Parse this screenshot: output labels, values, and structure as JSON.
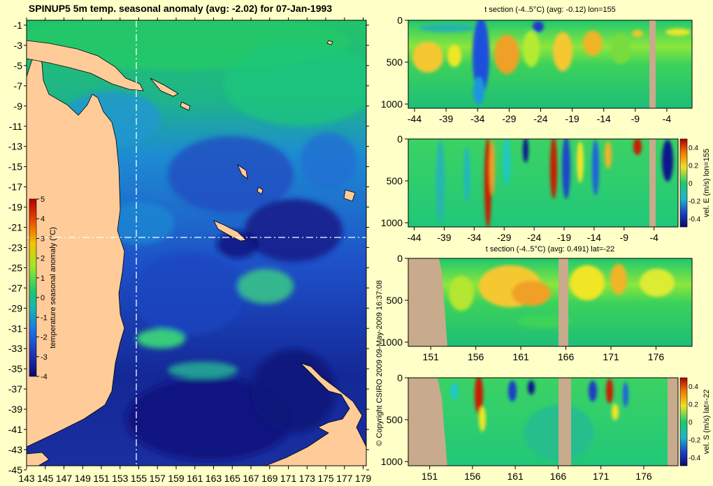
{
  "map": {
    "title": "SPINUP5 5m temp. seasonal anomaly (avg: -2.02) for 07-Jan-1993",
    "x_ticks": [
      "143",
      "145",
      "147",
      "149",
      "151",
      "153",
      "155",
      "157",
      "159",
      "161",
      "163",
      "165",
      "167",
      "169",
      "171",
      "173",
      "175",
      "177",
      "179"
    ],
    "y_ticks": [
      "-1",
      "-3",
      "-5",
      "-7",
      "-9",
      "-11",
      "-13",
      "-15",
      "-17",
      "-19",
      "-21",
      "-23",
      "-25",
      "-27",
      "-29",
      "-31",
      "-33",
      "-35",
      "-37",
      "-39",
      "-41",
      "-43",
      "-45"
    ],
    "colorbar": {
      "label": "temperature seasonal anomaly (°C)",
      "ticks": [
        "5",
        "4",
        "3",
        "2",
        "1",
        "0",
        "-1",
        "-2",
        "-3",
        "-4"
      ]
    },
    "section_lines": {
      "lon": 155,
      "lat": -22
    },
    "copyright": "© Copyright CSIRO 2009   09-May-2009 16:37:08"
  },
  "chart_data": [
    {
      "type": "heatmap",
      "title": "t section (-4..5°C) (avg: -0.12) lon=155",
      "xlabel": "",
      "ylabel": "",
      "x_ticks": [
        "-44",
        "-39",
        "-34",
        "-29",
        "-24",
        "-19",
        "-14",
        "-9",
        "-4"
      ],
      "y_ticks": [
        "0",
        "500",
        "1000"
      ],
      "xlim": [
        -45,
        0
      ],
      "ylim": [
        1050,
        0
      ],
      "colorbar": null
    },
    {
      "type": "heatmap",
      "title": "",
      "xlabel": "",
      "ylabel": "vel. E (m/s) lon=155",
      "x_ticks": [
        "-44",
        "-39",
        "-34",
        "-29",
        "-24",
        "-19",
        "-14",
        "-9",
        "-4"
      ],
      "y_ticks": [
        "0",
        "500",
        "1000"
      ],
      "xlim": [
        -45,
        0
      ],
      "ylim": [
        1050,
        0
      ],
      "colorbar": {
        "ticks": [
          "0.4",
          "0.2",
          "0",
          "-0.2",
          "-0.4"
        ]
      }
    },
    {
      "type": "heatmap",
      "title": "t section (-4..5°C) (avg: 0.491) lat=-22",
      "xlabel": "",
      "ylabel": "",
      "x_ticks": [
        "151",
        "156",
        "161",
        "166",
        "171",
        "176"
      ],
      "y_ticks": [
        "0",
        "500",
        "1000"
      ],
      "xlim": [
        148.5,
        180
      ],
      "ylim": [
        1050,
        0
      ],
      "colorbar": null
    },
    {
      "type": "heatmap",
      "title": "",
      "xlabel": "",
      "ylabel": "vel. S (m/s) lat=-22",
      "x_ticks": [
        "151",
        "156",
        "161",
        "166",
        "171",
        "176"
      ],
      "y_ticks": [
        "0",
        "500",
        "1000"
      ],
      "xlim": [
        148.5,
        180
      ],
      "ylim": [
        1050,
        0
      ],
      "colorbar": {
        "ticks": [
          "0.4",
          "0.2",
          "0",
          "-0.2",
          "-0.4"
        ]
      }
    }
  ],
  "colors": {
    "background": "#ffffc8",
    "land": "#ffcc99",
    "section_land": "#c8aa8c",
    "deep_blue": "#1a148c",
    "mid_blue": "#1e5ad2",
    "green": "#20c86e",
    "yellow": "#f0f028",
    "red": "#c81e00"
  }
}
